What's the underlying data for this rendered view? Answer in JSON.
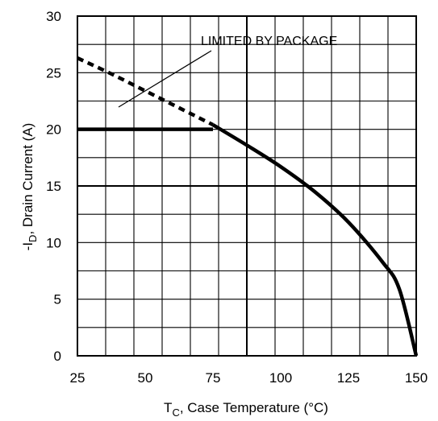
{
  "chart_data": {
    "type": "line",
    "xlabel": {
      "symbol": "T",
      "sub": "C",
      "text": ", Case Temperature (°C)"
    },
    "ylabel": {
      "prefix": "-I",
      "sub": "D",
      "text": ", Drain Current (A)"
    },
    "xlim": [
      25,
      150
    ],
    "ylim": [
      0,
      30
    ],
    "x_ticks": [
      25,
      50,
      75,
      100,
      125,
      150
    ],
    "y_ticks": [
      0,
      5,
      10,
      15,
      20,
      25,
      30
    ],
    "grid": true,
    "annotation": "LIMITED BY PACKAGE",
    "series": [
      {
        "style": "dashed",
        "points": [
          [
            25,
            26.3
          ],
          [
            37.5,
            24.9
          ],
          [
            50,
            23.4
          ],
          [
            62.5,
            21.9
          ],
          [
            75,
            20.4
          ]
        ]
      },
      {
        "style": "solid",
        "points": [
          [
            25,
            20.0
          ],
          [
            75,
            20.0
          ]
        ]
      },
      {
        "style": "solid",
        "points": [
          [
            75,
            20.4
          ],
          [
            87.5,
            18.6
          ],
          [
            100,
            16.7
          ],
          [
            112.5,
            14.5
          ],
          [
            125,
            11.8
          ],
          [
            137.5,
            8.3
          ],
          [
            143.75,
            5.9
          ],
          [
            150,
            0
          ]
        ]
      }
    ],
    "colors": {
      "lines": "#000000",
      "grid": "#000000",
      "background": "#ffffff"
    }
  }
}
